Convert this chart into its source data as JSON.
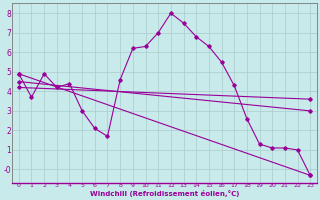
{
  "xlabel": "Windchill (Refroidissement éolien,°C)",
  "background_color": "#c8eaea",
  "grid_color": "#b0d0d0",
  "line_color": "#990099",
  "xlim": [
    -0.5,
    23.5
  ],
  "ylim": [
    -0.7,
    8.5
  ],
  "xticks": [
    0,
    1,
    2,
    3,
    4,
    5,
    6,
    7,
    8,
    9,
    10,
    11,
    12,
    13,
    14,
    15,
    16,
    17,
    18,
    19,
    20,
    21,
    22,
    23
  ],
  "yticks": [
    0,
    1,
    2,
    3,
    4,
    5,
    6,
    7,
    8
  ],
  "ytick_labels": [
    "-0",
    "1",
    "2",
    "3",
    "4",
    "5",
    "6",
    "7",
    "8"
  ],
  "series1_x": [
    0,
    1,
    2,
    3,
    4,
    5,
    6,
    7,
    8,
    9,
    10,
    11,
    12,
    13,
    14,
    15,
    16,
    17,
    18,
    19,
    20,
    21,
    22,
    23
  ],
  "series1_y": [
    4.9,
    3.7,
    4.9,
    4.2,
    4.4,
    3.0,
    2.1,
    1.7,
    4.6,
    6.2,
    6.3,
    7.0,
    8.0,
    7.5,
    6.8,
    6.3,
    5.5,
    4.3,
    2.6,
    1.3,
    1.1,
    1.1,
    1.0,
    -0.3
  ],
  "line2_x": [
    0,
    23
  ],
  "line2_y": [
    4.9,
    -0.3
  ],
  "line3_x": [
    0,
    23
  ],
  "line3_y": [
    4.5,
    3.0
  ],
  "line4_x": [
    0,
    23
  ],
  "line4_y": [
    4.2,
    3.6
  ]
}
